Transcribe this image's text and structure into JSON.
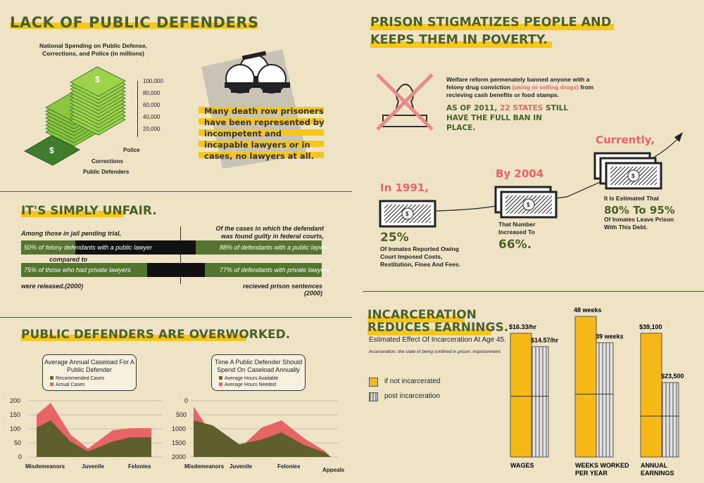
{
  "lack": {
    "title": "LACK OF PUBLIC DEFENDERS",
    "spending_title": "National Spending on Public Defense, Corrections, and Police (in millions)",
    "ticks": [
      "100,000",
      "80,000",
      "60,000",
      "40,000",
      "20,000"
    ],
    "stack_labels": [
      "Police",
      "Corrections",
      "Public Defenders"
    ],
    "death_row_text": "Many death row prisoners have been represented by incompetent and incapable lawyers or in cases, no lawyers at all."
  },
  "unfair": {
    "title": "IT'S SIMPLY UNFAIR.",
    "left_header": "Among those in jail pending trial,",
    "right_header": "Of the cases in which the defendant was found guilty in federal courts,",
    "row1_left": "50% of felony defendants with a public lawyer",
    "row1_right": "88% of defendants with a public laywer",
    "compared": "compared to",
    "row2_left": "75% of those who had private lawyers",
    "row2_right": "77% of defendants with private lawyers",
    "left_footer": "were released.(2000)",
    "right_footer": "recieved prison sentences (2000)",
    "values": {
      "public_released": 50,
      "private_released": 75,
      "public_sentenced": 88,
      "private_sentenced": 77
    }
  },
  "overworked": {
    "title": "PUBLIC DEFENDERS ARE OVERWORKED.",
    "chart1": {
      "bubble_title": "Average Annual Caseload For A Public Defender",
      "legend": [
        "Recommended Cases",
        "Actual Cases"
      ],
      "yticks": [
        "200",
        "150",
        "100",
        "50",
        "0"
      ],
      "xlabels": [
        "Misdemeanors",
        "Juvenile",
        "Felonies"
      ]
    },
    "chart2": {
      "bubble_title": "Time A Public Defender Should Spend On Caseload Annually",
      "legend": [
        "Average Hours Available",
        "Average Hours Needed"
      ],
      "yticks": [
        "0",
        "500",
        "1000",
        "1500",
        "2000"
      ],
      "xlabels": [
        "Misdemeanors",
        "Juvenile",
        "Felonies",
        "Appeals"
      ]
    }
  },
  "stigma": {
    "title_line1": "PRISON STIGMATIZES PEOPLE AND",
    "title_line2": "KEEPS THEM IN POVERTY.",
    "welfare_a": "Welfare reform permenately banned anyone with a felony drug conviction ",
    "welfare_b": "(using or selling drugs)",
    "welfare_c": " from recieving cash benefits or food stamps.",
    "states_a": "AS OF 2011, ",
    "states_b": "22 STATES",
    "states_c": " STILL HAVE THE FULL BAN IN PLACE.",
    "y1991": "In 1991,",
    "pct25": "25%",
    "desc25": "Of Inmates Reported Owing Court Imposed Costs, Restitution, Fines And Fees.",
    "y2004": "By 2004",
    "desc66": "That Number Increased To",
    "pct66": "66%.",
    "currently": "Currently,",
    "est": "It Is Estimated That",
    "pct80": "80% To 95%",
    "desc80": "Of Inmates Leave Prison With This Debt."
  },
  "earnings": {
    "title_line1": "INCARCERATION",
    "title_line2": "REDUCES EARNINGS.",
    "subtitle": "Estimated Effect Of Incarceration At Age 45.",
    "definition": "Incarceration: the state of being confined in prison; imprisonment.",
    "legend_yes": "if not incarcerated",
    "legend_no": "post incarceration",
    "colors": {
      "not_incarcerated": "#f6b817",
      "post": "#c8c8c8"
    },
    "chart_data": {
      "type": "bar",
      "categories": [
        "WAGES",
        "WEEKS WORKED PER YEAR",
        "ANNUAL EARNINGS"
      ],
      "series": [
        {
          "name": "if not incarcerated",
          "values_labels": [
            "$16.33/hr",
            "48 weeks",
            "$39,100"
          ]
        },
        {
          "name": "post incarceration",
          "values_labels": [
            "$14.57/hr",
            "39 weeks",
            "$23,500"
          ]
        }
      ],
      "value_pairs": [
        [
          16.33,
          14.57
        ],
        [
          48,
          39
        ],
        [
          39100,
          23500
        ]
      ]
    }
  }
}
